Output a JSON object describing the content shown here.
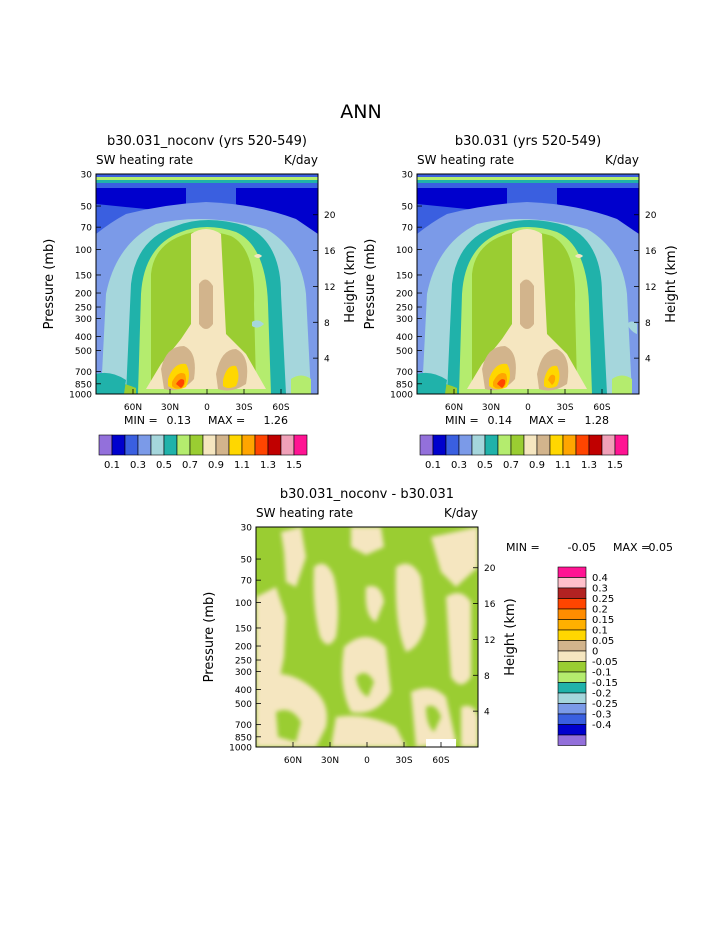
{
  "page_title": "ANN",
  "chart_data": [
    {
      "type": "heatmap",
      "title": "b30.031_noconv (yrs 520-549)",
      "subtitle_left": "SW heating rate",
      "subtitle_right": "K/day",
      "ylabel": "Pressure (mb)",
      "ylabel_right": "Height (km)",
      "xticks": [
        "60N",
        "30N",
        "0",
        "30S",
        "60S"
      ],
      "yticks": [
        "30",
        "50",
        "70",
        "100",
        "150",
        "200",
        "250",
        "300",
        "400",
        "500",
        "700",
        "850",
        "1000"
      ],
      "yticks_right": [
        "20",
        "16",
        "12",
        "8",
        "4"
      ],
      "stats": {
        "min_label": "MIN =",
        "min": "0.13",
        "max_label": "MAX =",
        "max": "1.26"
      },
      "colorbar_labels": [
        "0.1",
        "0.3",
        "0.5",
        "0.7",
        "0.9",
        "1.1",
        "1.3",
        "1.5"
      ]
    },
    {
      "type": "heatmap",
      "title": "b30.031 (yrs 520-549)",
      "subtitle_left": "SW heating rate",
      "subtitle_right": "K/day",
      "ylabel": "Pressure (mb)",
      "ylabel_right": "Height (km)",
      "xticks": [
        "60N",
        "30N",
        "0",
        "30S",
        "60S"
      ],
      "yticks": [
        "30",
        "50",
        "70",
        "100",
        "150",
        "200",
        "250",
        "300",
        "400",
        "500",
        "700",
        "850",
        "1000"
      ],
      "yticks_right": [
        "20",
        "16",
        "12",
        "8",
        "4"
      ],
      "stats": {
        "min_label": "MIN =",
        "min": "0.14",
        "max_label": "MAX =",
        "max": "1.28"
      },
      "colorbar_labels": [
        "0.1",
        "0.3",
        "0.5",
        "0.7",
        "0.9",
        "1.1",
        "1.3",
        "1.5"
      ]
    },
    {
      "type": "heatmap",
      "title": "b30.031_noconv - b30.031",
      "subtitle_left": "SW heating rate",
      "subtitle_right": "K/day",
      "ylabel": "Pressure (mb)",
      "ylabel_right": "Height (km)",
      "xticks": [
        "60N",
        "30N",
        "0",
        "30S",
        "60S"
      ],
      "yticks": [
        "30",
        "50",
        "70",
        "100",
        "150",
        "200",
        "250",
        "300",
        "400",
        "500",
        "700",
        "850",
        "1000"
      ],
      "yticks_right": [
        "20",
        "16",
        "12",
        "8",
        "4"
      ],
      "stats": {
        "min_label": "MIN =",
        "min": "-0.05",
        "max_label": "MAX =",
        "max": "0.05"
      },
      "colorbar_labels": [
        "0.4",
        "0.3",
        "0.25",
        "0.2",
        "0.15",
        "0.1",
        "0.05",
        "0",
        "-0.05",
        "-0.1",
        "-0.15",
        "-0.2",
        "-0.25",
        "-0.3",
        "-0.4"
      ]
    }
  ],
  "colors": {
    "abs_scale": [
      "#9370db",
      "#0000cd",
      "#3a5fe0",
      "#7b9ae8",
      "#a5d6dc",
      "#20b2aa",
      "#b4ec6e",
      "#9acd32",
      "#f5e6c0",
      "#d2b48c",
      "#ffd700",
      "#ffa500",
      "#ff4500",
      "#c00000",
      "#f0a0b8",
      "#ff1493"
    ],
    "diff_scale": [
      "#ff1493",
      "#ffc0cb",
      "#b22222",
      "#ff4500",
      "#ff8c00",
      "#ffb000",
      "#ffd700",
      "#d2b48c",
      "#f5e6c0",
      "#9acd32",
      "#b4ec6e",
      "#20b2aa",
      "#a5d6dc",
      "#7b9ae8",
      "#3a5fe0",
      "#0000cd",
      "#9370db"
    ]
  }
}
